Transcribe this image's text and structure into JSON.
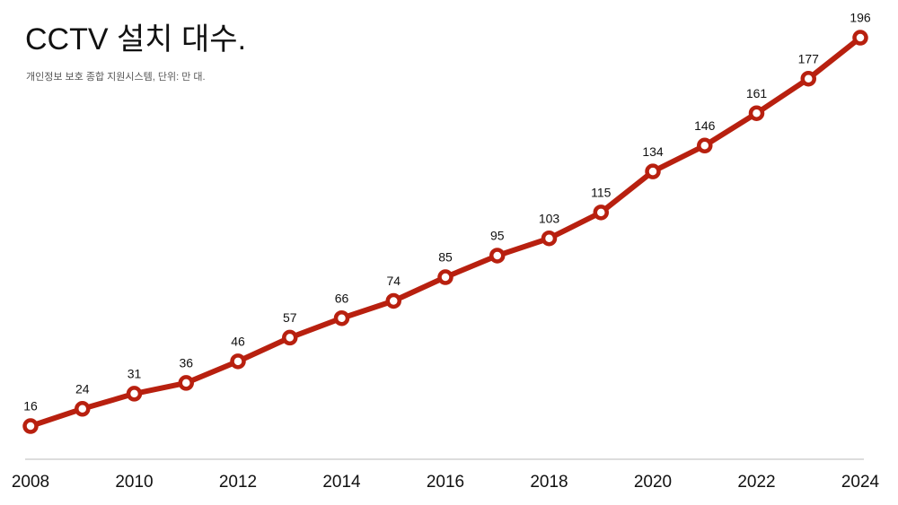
{
  "chart_data": {
    "type": "line",
    "title": "CCTV 설치 대수.",
    "subtitle": "개인정보 보호 종합 지원시스템, 단위: 만 대.",
    "x": [
      2008,
      2009,
      2010,
      2011,
      2012,
      2013,
      2014,
      2015,
      2016,
      2017,
      2018,
      2019,
      2020,
      2021,
      2022,
      2023,
      2024
    ],
    "values": [
      16,
      24,
      31,
      36,
      46,
      57,
      66,
      74,
      85,
      95,
      103,
      115,
      134,
      146,
      161,
      177,
      196
    ],
    "color": "#b8200f",
    "xlim": [
      2008,
      2024
    ],
    "xticks": [
      2008,
      2010,
      2012,
      2014,
      2016,
      2018,
      2020,
      2022,
      2024
    ],
    "ylim": [
      0,
      200
    ]
  }
}
